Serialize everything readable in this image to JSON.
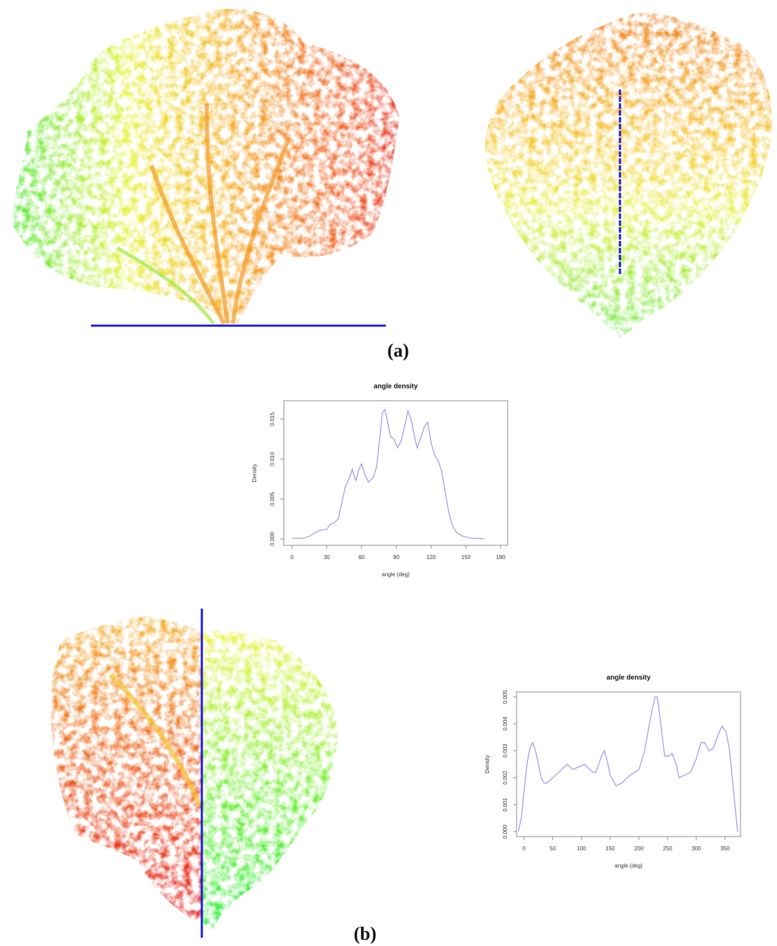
{
  "figure": {
    "labels": [
      "(a)",
      "(b)"
    ]
  },
  "chart_data": [
    {
      "type": "line",
      "title": "angle density",
      "xlabel": "angle (deg)",
      "ylabel": "Density",
      "color": "#9a9af0",
      "x": [
        0,
        10,
        15,
        20,
        25,
        30,
        33,
        36,
        40,
        43,
        46,
        50,
        52,
        55,
        58,
        60,
        63,
        66,
        70,
        73,
        76,
        78,
        80,
        82,
        85,
        88,
        91,
        94,
        97,
        100,
        103,
        106,
        108,
        111,
        114,
        117,
        120,
        123,
        126,
        129,
        132,
        135,
        138,
        142,
        148,
        155,
        166
      ],
      "values": [
        0.0001,
        0.0001,
        0.0003,
        0.0008,
        0.0011,
        0.0012,
        0.0018,
        0.002,
        0.0025,
        0.0045,
        0.0065,
        0.0078,
        0.0087,
        0.0073,
        0.0088,
        0.0094,
        0.008,
        0.0071,
        0.0077,
        0.009,
        0.013,
        0.0158,
        0.0162,
        0.015,
        0.0128,
        0.0125,
        0.0114,
        0.0122,
        0.014,
        0.016,
        0.0148,
        0.0126,
        0.0114,
        0.0126,
        0.014,
        0.0146,
        0.012,
        0.0105,
        0.0098,
        0.0085,
        0.006,
        0.0035,
        0.0018,
        0.0008,
        0.0003,
        0.0001,
        0
      ],
      "xlim": [
        -7,
        186
      ],
      "ylim": [
        -0.0008,
        0.0173
      ],
      "xticks": [
        0,
        30,
        60,
        90,
        120,
        150,
        180
      ],
      "yticks": [
        {
          "value": 0,
          "label": "0.000"
        },
        {
          "value": 0.005,
          "label": "0.005"
        },
        {
          "value": 0.01,
          "label": "0.010"
        },
        {
          "value": 0.015,
          "label": "0.015"
        }
      ]
    },
    {
      "type": "line",
      "title": "angle density",
      "xlabel": "angle (deg)",
      "ylabel": "Density",
      "color": "#9a9af0",
      "x": [
        -10,
        -5,
        0,
        5,
        10,
        15,
        20,
        25,
        30,
        35,
        40,
        50,
        60,
        70,
        75,
        85,
        95,
        105,
        110,
        120,
        125,
        135,
        140,
        145,
        150,
        160,
        170,
        185,
        200,
        210,
        220,
        228,
        232,
        238,
        245,
        252,
        258,
        265,
        270,
        280,
        290,
        300,
        308,
        315,
        322,
        330,
        340,
        345,
        352,
        358,
        365,
        372
      ],
      "values": [
        0,
        0.0005,
        0.0015,
        0.0025,
        0.0031,
        0.0033,
        0.003,
        0.0025,
        0.002,
        0.0018,
        0.0018,
        0.002,
        0.0022,
        0.0024,
        0.0025,
        0.0023,
        0.0024,
        0.0025,
        0.0024,
        0.0022,
        0.0022,
        0.0028,
        0.003,
        0.0026,
        0.0021,
        0.0017,
        0.0018,
        0.0021,
        0.0023,
        0.003,
        0.0042,
        0.005,
        0.005,
        0.004,
        0.0028,
        0.0028,
        0.0029,
        0.0025,
        0.002,
        0.0021,
        0.0022,
        0.0027,
        0.0033,
        0.0033,
        0.003,
        0.0031,
        0.0037,
        0.0039,
        0.0037,
        0.003,
        0.0015,
        0
      ],
      "xlim": [
        -13,
        377
      ],
      "ylim": [
        -0.00018,
        0.00518
      ],
      "xticks": [
        0,
        50,
        100,
        150,
        200,
        250,
        300,
        350
      ],
      "yticks": [
        {
          "value": 0,
          "label": "0.000"
        },
        {
          "value": 0.001,
          "label": "0.001"
        },
        {
          "value": 0.002,
          "label": "0.002"
        },
        {
          "value": 0.003,
          "label": "0.003"
        },
        {
          "value": 0.004,
          "label": "0.004"
        },
        {
          "value": 0.005,
          "label": "0.005"
        }
      ]
    }
  ]
}
